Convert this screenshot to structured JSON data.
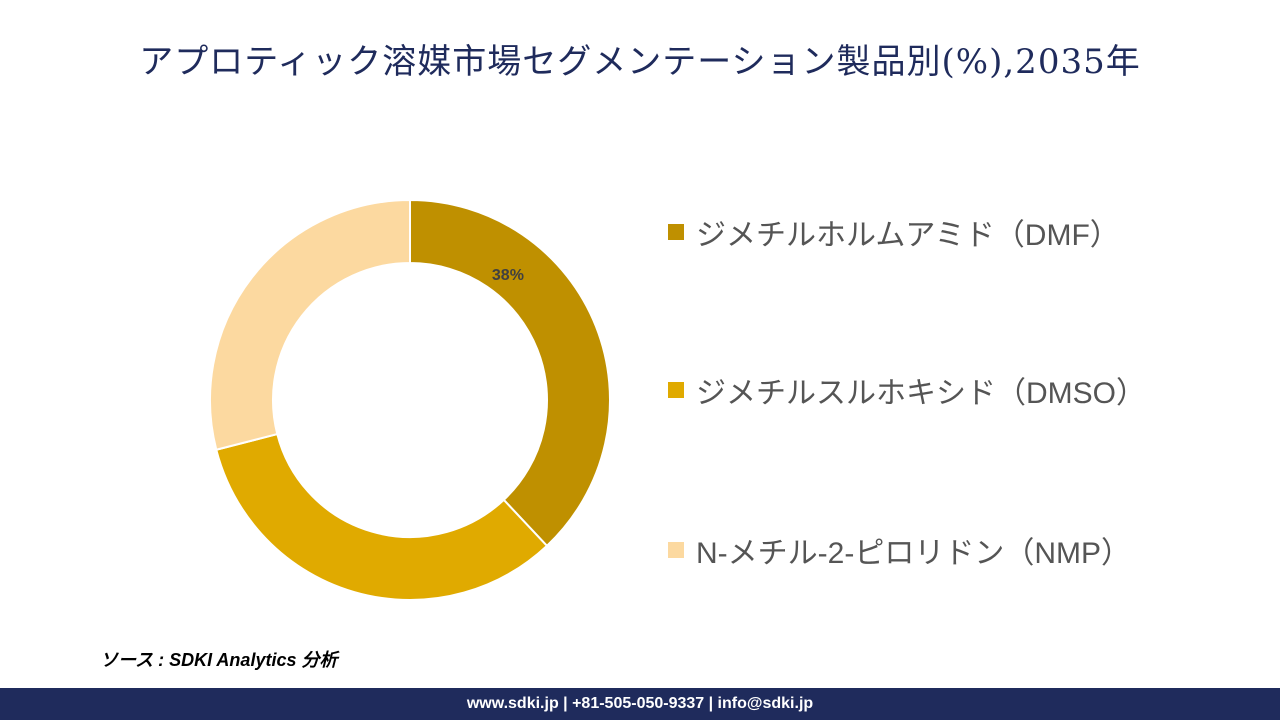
{
  "page": {
    "title": "アプロティック溶媒市場セグメンテーション製品別(%),2035年",
    "source": "ソース : SDKI Analytics 分析",
    "footer": "www.sdki.jp | +81-505-050-9337 | info@sdki.jp"
  },
  "chart_data": {
    "type": "pie",
    "donut": true,
    "categories": [
      "ジメチルホルムアミド（DMF）",
      "ジメチルスルホキシド（DMSO）",
      "N-メチル-2-ピロリドン（NMP）"
    ],
    "values": [
      38,
      33,
      29
    ],
    "colors": [
      "#bf9000",
      "#e0aa00",
      "#fcd9a0"
    ],
    "data_labels": [
      "38%",
      "",
      ""
    ],
    "legend_position": "right"
  }
}
